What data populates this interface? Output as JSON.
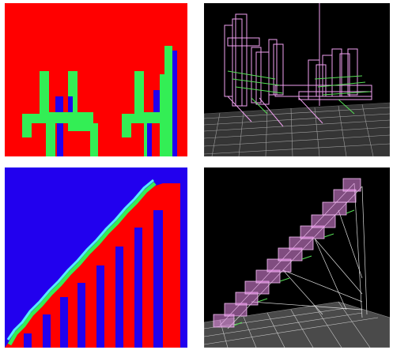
{
  "panels": [
    {
      "view": "2d-section",
      "subject": "chairs"
    },
    {
      "view": "3d-wireframe",
      "subject": "chairs"
    },
    {
      "view": "2d-section",
      "subject": "stairs"
    },
    {
      "view": "3d-wireframe",
      "subject": "stairs"
    }
  ],
  "colors": {
    "red": "#ff0000",
    "green": "#33ee55",
    "blue": "#2200ee",
    "cyan": "#55eeff",
    "black": "#000000",
    "wire_pink": "#f0a0f0",
    "wire_green": "#55dd55",
    "floor": "#c8c8c8"
  }
}
